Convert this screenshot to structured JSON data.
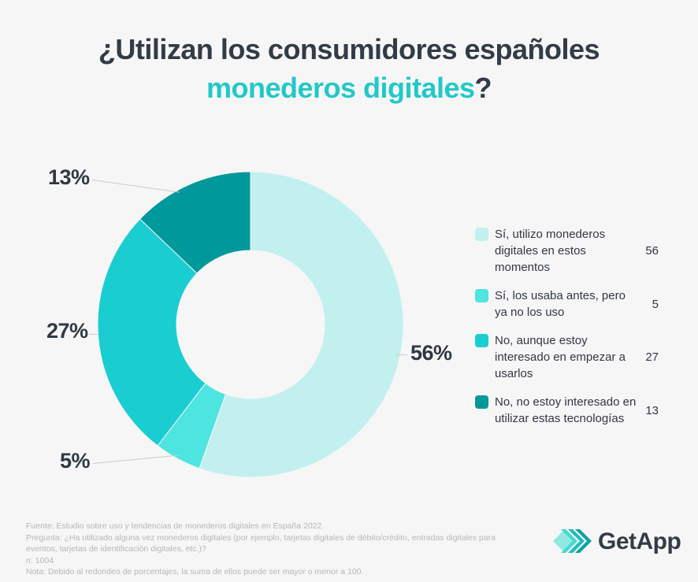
{
  "title": {
    "line1": "¿Utilizan los consumidores españoles",
    "line2_highlight": "monederos digitales",
    "line2_suffix": "?"
  },
  "colors": {
    "background": "#f6f6f7",
    "title_dark": "#333b46",
    "title_accent": "#22c8c8",
    "callout_text": "#2f3844",
    "legend_text": "#2f3844",
    "footer_text": "#b5b6b8",
    "leader_line": "#c9cacb"
  },
  "chart_data": {
    "type": "pie",
    "donut": true,
    "title": "¿Utilizan los consumidores españoles monederos digitales?",
    "categories": [
      "Sí, utilizo monederos digitales en estos momentos",
      "Sí, los usaba antes, pero ya no los uso",
      "No, aunque estoy interesado en empezar a usarlos",
      "No, no estoy interesado en utilizar estas tecnologías"
    ],
    "values": [
      56,
      5,
      27,
      13
    ],
    "colors": [
      "#c1f0ee",
      "#4ee4e0",
      "#1acdd1",
      "#00999b"
    ],
    "percent_labels": [
      "56%",
      "5%",
      "27%",
      "13%"
    ],
    "legend_position": "right",
    "start_angle_deg": 0,
    "direction": "clockwise",
    "inner_radius_ratio": 0.48
  },
  "footer": {
    "lines": [
      "Fuente: Estudio sobre uso y tendencias de monederos digitales en España 2022.",
      "Pregunta: ¿Ha utilizado alguna vez monederos digitales (por ejemplo, tarjetas digitales de débito/crédito, entradas digitales para",
      "eventos, tarjetas de identificación digitales, etc.)?",
      "n: 1004",
      "Nota: Debido al redondeo de porcentajes, la suma de ellos puede ser mayor o menor a 100."
    ]
  },
  "logo": {
    "text": "GetApp"
  }
}
